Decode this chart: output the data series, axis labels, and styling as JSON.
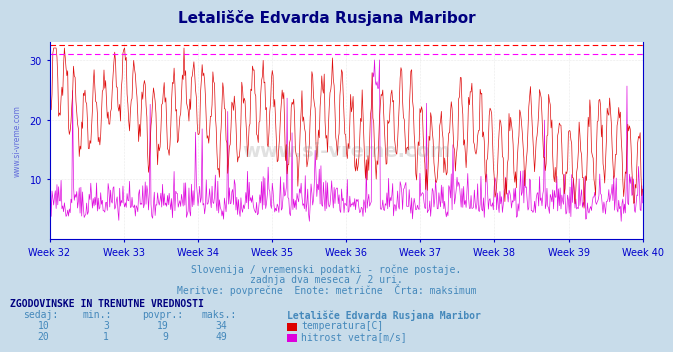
{
  "title": "Letališče Edvarda Rusjana Maribor",
  "title_color": "#000080",
  "bg_color": "#c8dcea",
  "plot_bg_color": "#ffffff",
  "grid_color": "#cccccc",
  "axis_color": "#0000cc",
  "week_labels": [
    "Week 32",
    "Week 33",
    "Week 34",
    "Week 35",
    "Week 36",
    "Week 37",
    "Week 38",
    "Week 39",
    "Week 40"
  ],
  "ylim": [
    0,
    33
  ],
  "yticks": [
    10,
    20,
    30
  ],
  "temp_color": "#dd0000",
  "wind_color": "#dd00dd",
  "temp_max_line": 32.5,
  "wind_max_line": 31.0,
  "temp_max_color": "#ff0000",
  "wind_max_color": "#ff00ff",
  "subtitle1": "Slovenija / vremenski podatki - ročne postaje.",
  "subtitle2": "zadnja dva meseca / 2 uri.",
  "subtitle3": "Meritve: povprečne  Enote: metrične  Črta: maksimum",
  "subtitle_color": "#4488bb",
  "table_header": "ZGODOVINSKE IN TRENUTNE VREDNOSTI",
  "table_color": "#000080",
  "col_headers": [
    "sedaj:",
    "min.:",
    "povpr.:",
    "maks.:",
    "Letališče Edvarda Rusjana Maribor"
  ],
  "row1": [
    10,
    3,
    19,
    34
  ],
  "row2": [
    20,
    1,
    9,
    49
  ],
  "row1_label": "temperatura[C]",
  "row2_label": "hitrost vetra[m/s]",
  "watermark": "www.si-vreme.com",
  "n_points": 720
}
